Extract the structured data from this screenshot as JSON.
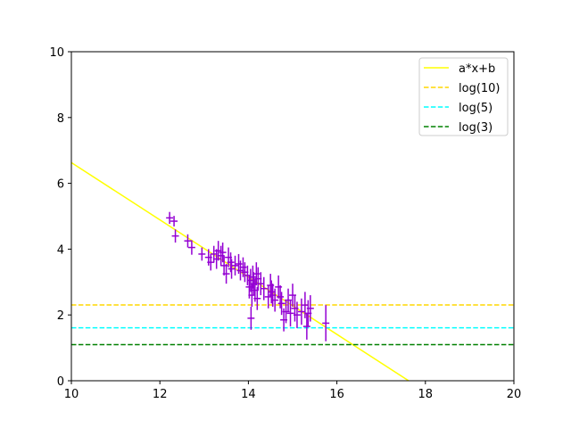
{
  "chart_data": {
    "type": "scatter",
    "title": "",
    "xlabel": "",
    "ylabel": "",
    "xlim": [
      10,
      20
    ],
    "ylim": [
      0,
      10
    ],
    "xticks": [
      "10",
      "12",
      "14",
      "16",
      "18",
      "20"
    ],
    "yticks": [
      "0",
      "2",
      "4",
      "6",
      "8",
      "10"
    ],
    "grid": false,
    "legend_position": "top-right",
    "fit_line": {
      "name": "a*x+b",
      "color": "#ffff00",
      "slope": -0.87,
      "intercept": 15.33
    },
    "hlines": [
      {
        "name": "log(10)",
        "y": 2.302585,
        "color": "#ffd700"
      },
      {
        "name": "log(5)",
        "y": 1.609438,
        "color": "#00ffff"
      },
      {
        "name": "log(3)",
        "y": 1.098612,
        "color": "#008000"
      }
    ],
    "scatter": {
      "color": "#9400d3",
      "xerr": 0.08,
      "points": [
        [
          12.22,
          4.95,
          0.18
        ],
        [
          12.32,
          4.85,
          0.16
        ],
        [
          12.35,
          4.4,
          0.2
        ],
        [
          12.63,
          4.25,
          0.2
        ],
        [
          12.72,
          4.05,
          0.22
        ],
        [
          12.95,
          3.85,
          0.2
        ],
        [
          13.1,
          3.75,
          0.25
        ],
        [
          13.15,
          3.6,
          0.25
        ],
        [
          13.22,
          3.85,
          0.25
        ],
        [
          13.28,
          3.7,
          0.3
        ],
        [
          13.32,
          3.95,
          0.3
        ],
        [
          13.38,
          3.8,
          0.3
        ],
        [
          13.42,
          3.9,
          0.3
        ],
        [
          13.45,
          3.5,
          0.3
        ],
        [
          13.5,
          3.25,
          0.3
        ],
        [
          13.55,
          3.75,
          0.3
        ],
        [
          13.6,
          3.6,
          0.3
        ],
        [
          13.62,
          3.4,
          0.3
        ],
        [
          13.7,
          3.5,
          0.3
        ],
        [
          13.78,
          3.55,
          0.3
        ],
        [
          13.82,
          3.35,
          0.3
        ],
        [
          13.88,
          3.45,
          0.3
        ],
        [
          13.92,
          3.3,
          0.3
        ],
        [
          13.98,
          3.2,
          0.3
        ],
        [
          14.02,
          2.85,
          0.35
        ],
        [
          14.05,
          3.05,
          0.35
        ],
        [
          14.06,
          1.9,
          0.35
        ],
        [
          14.08,
          2.6,
          0.35
        ],
        [
          14.1,
          3.15,
          0.35
        ],
        [
          14.12,
          2.95,
          0.35
        ],
        [
          14.15,
          2.75,
          0.35
        ],
        [
          14.18,
          3.25,
          0.35
        ],
        [
          14.2,
          2.5,
          0.35
        ],
        [
          14.22,
          3.1,
          0.35
        ],
        [
          14.28,
          2.95,
          0.35
        ],
        [
          14.35,
          2.8,
          0.35
        ],
        [
          14.45,
          2.55,
          0.35
        ],
        [
          14.5,
          2.9,
          0.35
        ],
        [
          14.52,
          2.7,
          0.35
        ],
        [
          14.55,
          2.6,
          0.35
        ],
        [
          14.6,
          2.45,
          0.35
        ],
        [
          14.68,
          2.85,
          0.35
        ],
        [
          14.72,
          2.55,
          0.35
        ],
        [
          14.75,
          2.35,
          0.35
        ],
        [
          14.8,
          1.85,
          0.35
        ],
        [
          14.85,
          2.1,
          0.35
        ],
        [
          14.9,
          2.45,
          0.35
        ],
        [
          14.95,
          2.05,
          0.4
        ],
        [
          15.0,
          2.6,
          0.35
        ],
        [
          15.05,
          2.2,
          0.4
        ],
        [
          15.1,
          2.0,
          0.4
        ],
        [
          15.2,
          2.1,
          0.4
        ],
        [
          15.28,
          2.3,
          0.4
        ],
        [
          15.32,
          1.65,
          0.4
        ],
        [
          15.35,
          2.05,
          0.4
        ],
        [
          15.4,
          2.2,
          0.4
        ],
        [
          15.75,
          1.75,
          0.55
        ]
      ]
    }
  }
}
